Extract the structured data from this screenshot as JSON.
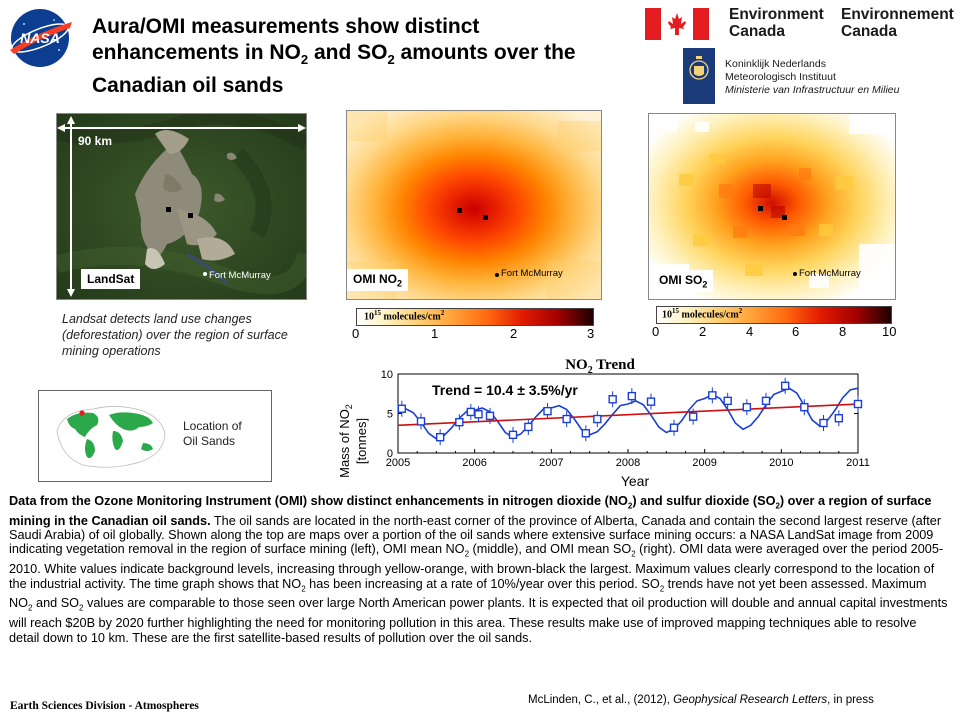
{
  "header": {
    "title_line1": "Aura/OMI measurements show distinct",
    "title_line2_pre": "enhancements in NO",
    "title_line2_mid": " and SO",
    "title_line2_post": " amounts over the",
    "title_line3": "Canadian oil sands",
    "sub2": "2"
  },
  "logos": {
    "nasa": "NASA",
    "ec_en_1": "Environment",
    "ec_en_2": "Canada",
    "ec_fr_1": "Environnement",
    "ec_fr_2": "Canada",
    "knmi_1": "Koninklijk Nederlands",
    "knmi_2": "Meteorologisch Instituut",
    "knmi_3": "Ministerie van Infrastructuur en Milieu"
  },
  "panels": {
    "landsat": {
      "label": "LandSat",
      "scale": "90 km",
      "city": "Fort McMurray"
    },
    "no2": {
      "label_pre": "OMI NO",
      "label_sub": "2",
      "city": "Fort McMurray"
    },
    "so2": {
      "label_pre": "OMI SO",
      "label_sub": "2",
      "city": "Fort McMurray"
    }
  },
  "landsat_caption": "Landsat detects land use changes (deforestation) over the region of surface mining operations",
  "colorbars": {
    "no2": {
      "unit_base": "10",
      "unit_exp": "15",
      "unit_rest": " molecules/cm",
      "unit_sq": "2",
      "ticks": [
        "0",
        "1",
        "2",
        "3"
      ]
    },
    "so2": {
      "unit_base": "10",
      "unit_exp": "15",
      "unit_rest": " molecules/cm",
      "unit_sq": "2",
      "ticks": [
        "0",
        "2",
        "4",
        "6",
        "8",
        "10"
      ]
    }
  },
  "location_inset": {
    "line1": "Location of",
    "line2": "Oil Sands"
  },
  "trend_chart": {
    "title_pre": "NO",
    "title_sub": "2",
    "title_post": " Trend",
    "trend_text": "Trend = 10.4 ± 3.5%/yr",
    "xlabel": "Year",
    "ylabel_pre": "Mass of NO",
    "ylabel_sub": "2",
    "ylabel_unit": "[tonnes]"
  },
  "chart_data": {
    "type": "line",
    "title": "NO2 Trend",
    "xlabel": "Year",
    "ylabel": "Mass of NO2 [tonnes]",
    "xlim": [
      2005,
      2011
    ],
    "ylim": [
      0,
      10
    ],
    "xticks": [
      "2005",
      "2006",
      "2007",
      "2008",
      "2009",
      "2010",
      "2011"
    ],
    "yticks": [
      "0",
      "5",
      "10"
    ],
    "annotation": "Trend = 10.4 ± 3.5%/yr",
    "series": [
      {
        "kind": "points",
        "x": [
          2005.05,
          2005.3,
          2005.55,
          2005.8,
          2005.95,
          2006.05,
          2006.2,
          2006.5,
          2006.7,
          2006.95,
          2007.2,
          2007.45,
          2007.6,
          2007.8,
          2008.05,
          2008.3,
          2008.6,
          2008.85,
          2009.1,
          2009.3,
          2009.55,
          2009.8,
          2010.05,
          2010.3,
          2010.55,
          2010.75,
          2011.0
        ],
        "y": [
          5.6,
          4.0,
          2.0,
          3.9,
          5.2,
          4.9,
          4.7,
          2.3,
          3.3,
          5.3,
          4.3,
          2.5,
          4.3,
          6.8,
          7.2,
          6.5,
          3.2,
          4.6,
          7.3,
          6.6,
          5.8,
          6.6,
          8.5,
          5.8,
          3.8,
          4.4,
          6.2
        ]
      },
      {
        "kind": "seasonal-fit",
        "x": [
          2005.0,
          2005.1,
          2005.2,
          2005.3,
          2005.4,
          2005.5,
          2005.6,
          2005.7,
          2005.8,
          2005.9,
          2006.0,
          2006.1,
          2006.2,
          2006.3,
          2006.4,
          2006.5,
          2006.6,
          2006.7,
          2006.8,
          2006.9,
          2007.0,
          2007.1,
          2007.2,
          2007.3,
          2007.4,
          2007.5,
          2007.6,
          2007.7,
          2007.8,
          2007.9,
          2008.0,
          2008.1,
          2008.2,
          2008.3,
          2008.4,
          2008.5,
          2008.6,
          2008.7,
          2008.8,
          2008.9,
          2009.0,
          2009.1,
          2009.2,
          2009.3,
          2009.4,
          2009.5,
          2009.6,
          2009.7,
          2009.8,
          2009.9,
          2010.0,
          2010.1,
          2010.2,
          2010.3,
          2010.4,
          2010.5,
          2010.6,
          2010.7,
          2010.8,
          2010.9,
          2011.0
        ],
        "y": [
          5.2,
          5.6,
          5.1,
          3.9,
          2.5,
          1.8,
          2.2,
          3.2,
          4.4,
          5.3,
          5.4,
          5.7,
          5.2,
          4.0,
          2.6,
          2.0,
          2.4,
          3.4,
          4.6,
          5.6,
          5.7,
          6.0,
          5.5,
          4.3,
          2.9,
          2.3,
          2.7,
          3.7,
          4.9,
          6.0,
          6.2,
          6.6,
          6.1,
          4.8,
          3.3,
          2.6,
          3.0,
          4.1,
          5.5,
          6.6,
          6.9,
          7.4,
          6.9,
          5.5,
          3.8,
          3.0,
          3.5,
          4.6,
          6.1,
          7.4,
          7.8,
          8.2,
          7.6,
          6.0,
          4.2,
          3.4,
          4.1,
          5.4,
          7.0,
          8.0,
          8.2
        ]
      },
      {
        "kind": "linear-trend",
        "x": [
          2005,
          2011
        ],
        "y": [
          3.5,
          6.2
        ]
      }
    ]
  },
  "body": {
    "bold_1": "Data from the Ozone Monitoring Instrument (OMI) show distinct enhancements in nitrogen dioxide (NO",
    "bold_2": ") and sulfur dioxide (SO",
    "bold_3": ") over a region of surface mining in the Canadian oil sands.",
    "p1": " The oil sands are located in the north-east corner of the province of Alberta, Canada and contain the second largest reserve (after Saudi Arabia) of oil globally. Shown along the top are maps over a portion of the oil sands where extensive surface mining occurs: a NASA LandSat image from 2009 indicating vegetation removal in the region of surface mining (left), OMI mean NO",
    "p2": " (middle), and OMI mean SO",
    "p3": " (right). OMI data were averaged over the period 2005-2010. White values indicate background levels, increasing through yellow-orange, with brown-black the largest. Maximum values clearly correspond to the location of the industrial activity. The time graph shows that NO",
    "p4": " has been increasing at a rate of 10%/year over this period. SO",
    "p5": " trends have not yet been assessed. Maximum NO",
    "p6": " and SO",
    "p7": " values are comparable to those seen over large North American power plants. It is expected that oil production will double and annual capital investments will reach $20B by 2020 further highlighting the need for monitoring pollution in this area. These results make use of improved mapping techniques able to resolve detail down to 10 km. These are the first satellite-based results of pollution over the oil sands.",
    "sub": "2"
  },
  "footer": {
    "left": "Earth Sciences Division - Atmospheres",
    "ref_pre": "McLinden, C., et al., (2012), ",
    "ref_journal": "Geophysical Research Letters",
    "ref_post": ", in press"
  },
  "colors": {
    "heat_dark": "#5a0000",
    "heat_red": "#e21b00",
    "heat_orange": "#ff8a00",
    "heat_yellow": "#ffe27a",
    "trend_red": "#cc1010",
    "fit_blue": "#1a3fd6"
  }
}
